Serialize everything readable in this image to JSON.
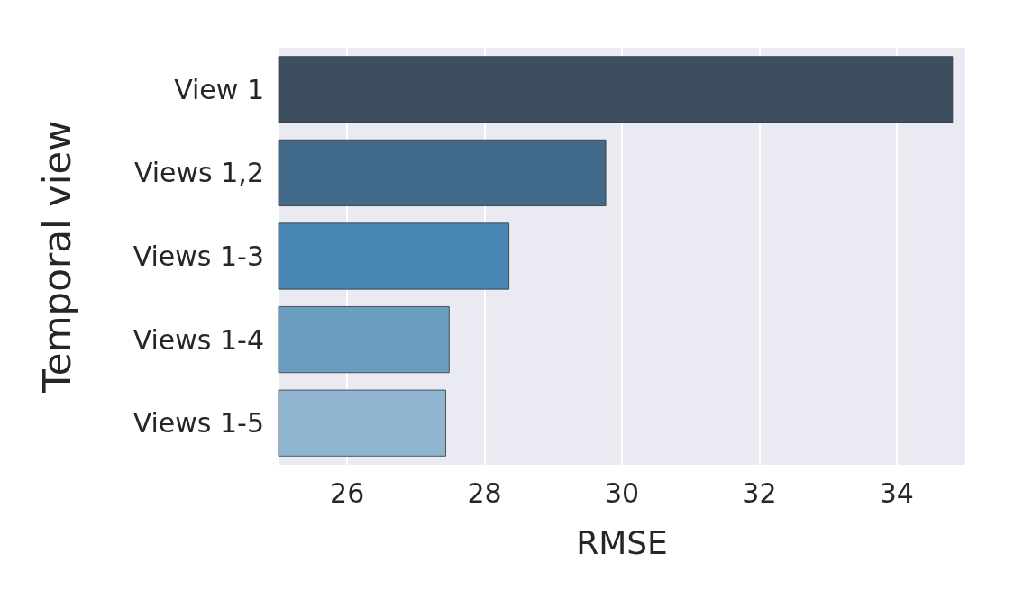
{
  "chart_data": {
    "type": "bar",
    "orientation": "horizontal",
    "xlabel": "RMSE",
    "ylabel": "Temporal view",
    "categories": [
      "View 1",
      "Views 1,2",
      "Views 1-3",
      "Views 1-4",
      "Views 1-5"
    ],
    "values": [
      34.82,
      29.77,
      28.36,
      27.49,
      27.44
    ],
    "colors": [
      "#3d4f5e",
      "#41698a",
      "#4886b4",
      "#6b9dc1",
      "#90b5d1"
    ],
    "xlim": [
      25,
      35
    ],
    "xticks": [
      26,
      28,
      30,
      32,
      34
    ],
    "grid": "x"
  }
}
